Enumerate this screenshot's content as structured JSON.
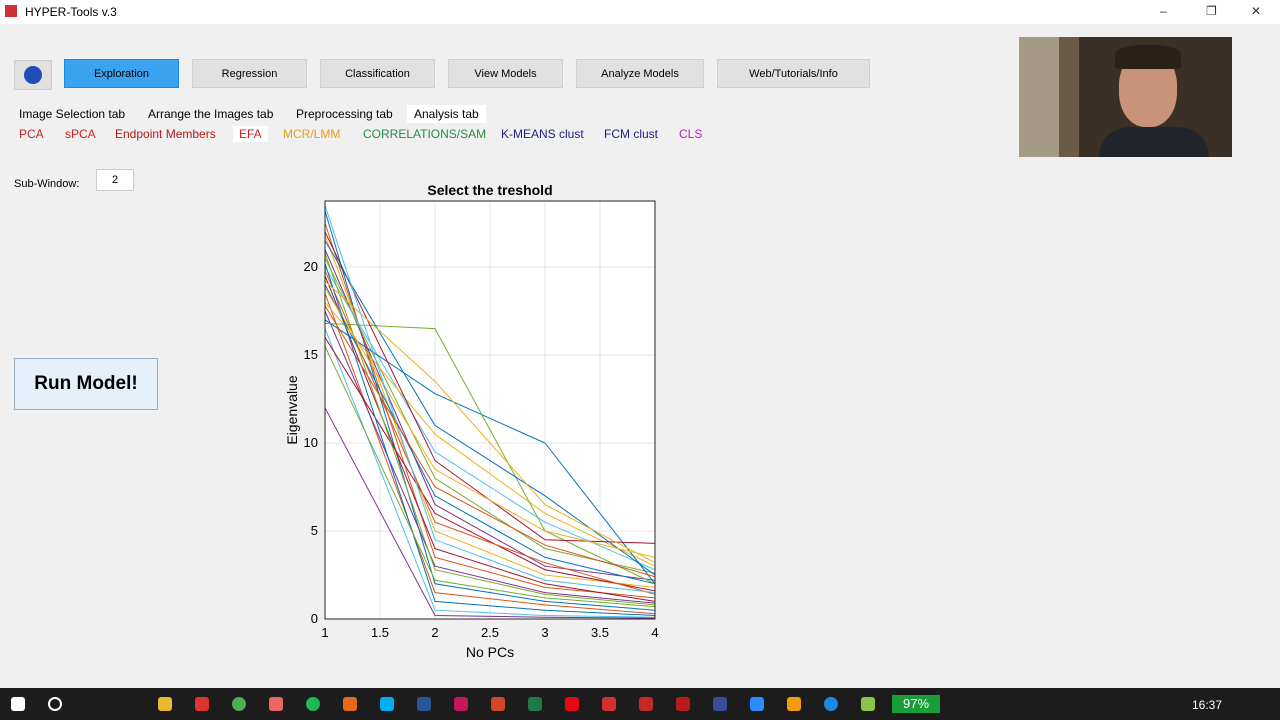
{
  "window": {
    "title": "HYPER-Tools v.3"
  },
  "toolbar": [
    "Exploration",
    "Regression",
    "Classification",
    "View Models",
    "Analyze Models",
    "Web/Tutorials/Info"
  ],
  "tabs": [
    "Image Selection tab",
    "Arrange the Images tab",
    "Preprocessing tab",
    "Analysis tab"
  ],
  "subtabs": [
    "PCA",
    "sPCA",
    "Endpoint Members",
    "EFA",
    "MCR/LMM",
    "CORRELATIONS/SAM",
    "K-MEANS clust",
    "FCM clust",
    "CLS"
  ],
  "sub_window": {
    "label": "Sub-Window:",
    "value": "2"
  },
  "run_button": "Run Model!",
  "taskbar": {
    "battery": "97%",
    "time": "16:37"
  },
  "chart_data": {
    "type": "line",
    "title": "Select the treshold",
    "xlabel": "No PCs",
    "ylabel": "Eigenvalue",
    "x": [
      1,
      2,
      3,
      4
    ],
    "xlim": [
      1,
      4
    ],
    "xticks": [
      1,
      1.5,
      2,
      2.5,
      3,
      3.5,
      4
    ],
    "ylim": [
      0,
      23.75
    ],
    "yticks": [
      0,
      5,
      10,
      15,
      20
    ],
    "grid": true,
    "series": [
      {
        "color": "#0072bd",
        "values": [
          23.2,
          2.0,
          1.0,
          0.5
        ]
      },
      {
        "color": "#d95319",
        "values": [
          22.5,
          3.5,
          1.8,
          1.2
        ]
      },
      {
        "color": "#edb120",
        "values": [
          21.8,
          5.0,
          2.5,
          1.8
        ]
      },
      {
        "color": "#7e2f8e",
        "values": [
          21.0,
          6.5,
          3.0,
          2.2
        ]
      },
      {
        "color": "#77ac30",
        "values": [
          20.5,
          8.0,
          4.0,
          2.6
        ]
      },
      {
        "color": "#4dbeee",
        "values": [
          20.0,
          9.5,
          5.5,
          2.8
        ]
      },
      {
        "color": "#a2142f",
        "values": [
          19.5,
          4.0,
          2.0,
          1.0
        ]
      },
      {
        "color": "#0072bd",
        "values": [
          19.0,
          7.0,
          3.5,
          2.0
        ]
      },
      {
        "color": "#d95319",
        "values": [
          18.5,
          1.5,
          0.8,
          0.3
        ]
      },
      {
        "color": "#edb120",
        "values": [
          18.0,
          10.5,
          6.0,
          3.0
        ]
      },
      {
        "color": "#7e2f8e",
        "values": [
          17.5,
          3.0,
          1.5,
          0.9
        ]
      },
      {
        "color": "#0072bd",
        "values": [
          17.0,
          12.8,
          10.0,
          2.0
        ]
      },
      {
        "color": "#77ac30",
        "values": [
          16.8,
          16.5,
          5.0,
          2.0
        ]
      },
      {
        "color": "#4dbeee",
        "values": [
          16.5,
          0.5,
          0.2,
          0.1
        ]
      },
      {
        "color": "#a2142f",
        "values": [
          16.0,
          6.0,
          2.8,
          1.6
        ]
      },
      {
        "color": "#a2142f",
        "values": [
          22.0,
          9.0,
          4.5,
          4.3
        ]
      },
      {
        "color": "#0072bd",
        "values": [
          21.5,
          11.0,
          7.0,
          2.5
        ]
      },
      {
        "color": "#77ac30",
        "values": [
          20.8,
          2.8,
          1.4,
          0.8
        ]
      },
      {
        "color": "#d95319",
        "values": [
          19.8,
          5.5,
          3.2,
          1.4
        ]
      },
      {
        "color": "#edb120",
        "values": [
          18.8,
          8.5,
          5.0,
          3.5
        ]
      },
      {
        "color": "#7e2f8e",
        "values": [
          12.0,
          0.2,
          0.1,
          0.05
        ]
      },
      {
        "color": "#4dbeee",
        "values": [
          23.5,
          4.5,
          2.2,
          1.5
        ]
      },
      {
        "color": "#d95319",
        "values": [
          17.8,
          7.5,
          4.2,
          2.4
        ]
      },
      {
        "color": "#0072bd",
        "values": [
          20.2,
          1.0,
          0.5,
          0.2
        ]
      },
      {
        "color": "#edb120",
        "values": [
          19.2,
          13.5,
          6.5,
          3.2
        ]
      },
      {
        "color": "#77ac30",
        "values": [
          15.5,
          2.2,
          1.2,
          0.7
        ]
      }
    ]
  }
}
